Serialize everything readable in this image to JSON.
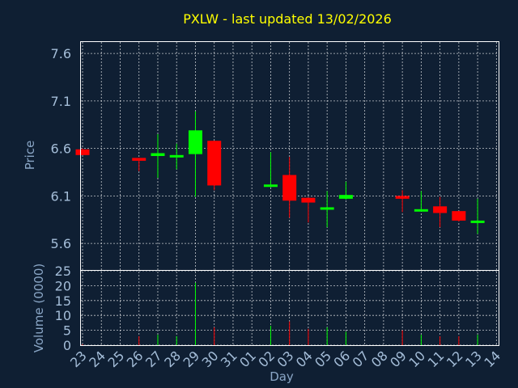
{
  "chart_data": {
    "type": "candlestick",
    "title": "PXLW - last updated 13/02/2026",
    "xlabel": "Day",
    "ylabel": "Price",
    "volume_label": "Volume (0000)",
    "grid": true,
    "price_ticks": [
      "5.6",
      "6.1",
      "6.6",
      "7.1",
      "7.6"
    ],
    "price_range": [
      5.32,
      7.72
    ],
    "volume_ticks": [
      "0",
      "5",
      "10",
      "15",
      "20",
      "25"
    ],
    "volume_range": [
      0,
      25
    ],
    "x_ticks": [
      "23",
      "24",
      "25",
      "26",
      "27",
      "28",
      "29",
      "30",
      "31",
      "01",
      "02",
      "03",
      "04",
      "05",
      "06",
      "07",
      "08",
      "09",
      "10",
      "11",
      "12",
      "13",
      "14"
    ],
    "up_color": "#00ff00",
    "down_color": "#ff0000",
    "candles": [
      {
        "day": "23",
        "open": 6.59,
        "high": 6.6,
        "low": 6.53,
        "close": 6.53,
        "volume": 0.3
      },
      {
        "day": "26",
        "open": 6.5,
        "high": 6.5,
        "low": 6.36,
        "close": 6.47,
        "volume": 3
      },
      {
        "day": "27",
        "open": 6.52,
        "high": 6.75,
        "low": 6.29,
        "close": 6.55,
        "volume": 3.5
      },
      {
        "day": "28",
        "open": 6.51,
        "high": 6.65,
        "low": 6.38,
        "close": 6.53,
        "volume": 3
      },
      {
        "day": "29",
        "open": 6.54,
        "high": 6.99,
        "low": 6.09,
        "close": 6.79,
        "volume": 21
      },
      {
        "day": "30",
        "open": 6.68,
        "high": 6.68,
        "low": 6.16,
        "close": 6.21,
        "volume": 6
      },
      {
        "day": "02",
        "open": 6.2,
        "high": 6.56,
        "low": 6.19,
        "close": 6.22,
        "volume": 6.5
      },
      {
        "day": "03",
        "open": 6.32,
        "high": 6.51,
        "low": 5.87,
        "close": 6.05,
        "volume": 8
      },
      {
        "day": "04",
        "open": 6.08,
        "high": 6.08,
        "low": 5.82,
        "close": 6.03,
        "volume": 5.5
      },
      {
        "day": "05",
        "open": 5.96,
        "high": 6.15,
        "low": 5.77,
        "close": 5.98,
        "volume": 6
      },
      {
        "day": "06",
        "open": 6.07,
        "high": 6.25,
        "low": 6.06,
        "close": 6.11,
        "volume": 4.5
      },
      {
        "day": "09",
        "open": 6.1,
        "high": 6.16,
        "low": 5.93,
        "close": 6.07,
        "volume": 5
      },
      {
        "day": "10",
        "open": 5.94,
        "high": 6.15,
        "low": 5.94,
        "close": 5.96,
        "volume": 3.5
      },
      {
        "day": "11",
        "open": 5.99,
        "high": 6.09,
        "low": 5.77,
        "close": 5.92,
        "volume": 3
      },
      {
        "day": "12",
        "open": 5.94,
        "high": 5.94,
        "low": 5.83,
        "close": 5.84,
        "volume": 3
      },
      {
        "day": "13",
        "open": 5.82,
        "high": 6.07,
        "low": 5.7,
        "close": 5.84,
        "volume": 3.5
      }
    ]
  }
}
